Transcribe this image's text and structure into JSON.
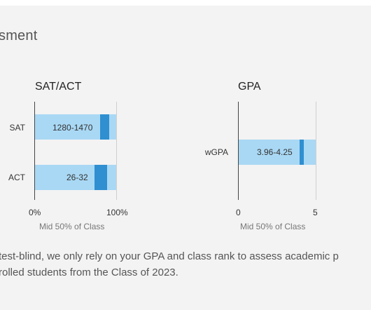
{
  "section_title": "sment",
  "note_lines": [
    " test-blind, we only rely on your GPA and class rank to assess academic p",
    "rolled students from the Class of 2023."
  ],
  "colors": {
    "range": "#a9d8f4",
    "marker": "#2f8fd0"
  },
  "chart_data": [
    {
      "type": "bar",
      "orientation": "horizontal",
      "title": "SAT/ACT",
      "xlabel": "Mid 50% of Class",
      "xlim": [
        0,
        100
      ],
      "xticks": [
        "0%",
        "100%"
      ],
      "grid": false,
      "categories": [
        "SAT",
        "ACT"
      ],
      "range_labels": [
        "1280-1470",
        "26-32"
      ],
      "range_start_pct": [
        0,
        0
      ],
      "range_end_pct": [
        100,
        100
      ],
      "marker_start_pct": [
        80,
        73
      ],
      "marker_end_pct": [
        91,
        89
      ]
    },
    {
      "type": "bar",
      "orientation": "horizontal",
      "title": "GPA",
      "xlabel": "Mid 50% of Class",
      "xlim": [
        0,
        5
      ],
      "xticks": [
        "0",
        "5"
      ],
      "grid": false,
      "categories": [
        "wGPA"
      ],
      "range_labels": [
        "3.96-4.25"
      ],
      "range_start": [
        0
      ],
      "range_end": [
        5
      ],
      "marker_start": [
        3.96
      ],
      "marker_end": [
        4.25
      ]
    }
  ]
}
